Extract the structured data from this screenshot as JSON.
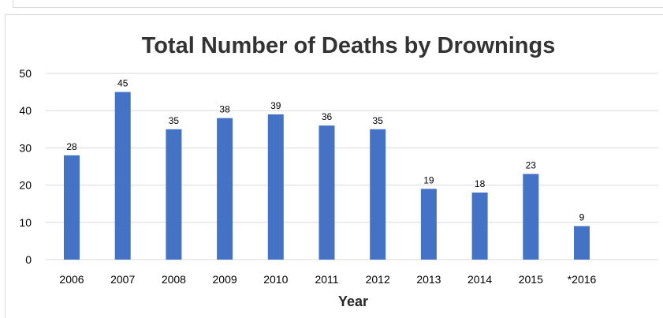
{
  "chart_data": {
    "type": "bar",
    "title": "Total Number of Deaths by Drownings",
    "xlabel": "Year",
    "ylabel": "",
    "categories": [
      "2006",
      "2007",
      "2008",
      "2009",
      "2010",
      "2011",
      "2012",
      "2013",
      "2014",
      "2015",
      "*2016"
    ],
    "values": [
      28,
      45,
      35,
      38,
      39,
      36,
      35,
      19,
      18,
      23,
      9
    ],
    "ylim": [
      0,
      50
    ],
    "yticks": [
      0,
      10,
      20,
      30,
      40,
      50
    ],
    "grid": true,
    "legend": "none",
    "bar_color": "#4472c4",
    "grid_color": "#d9d9d9",
    "text_color": "#000000",
    "title_color": "#333333",
    "label_color": "#262626"
  }
}
